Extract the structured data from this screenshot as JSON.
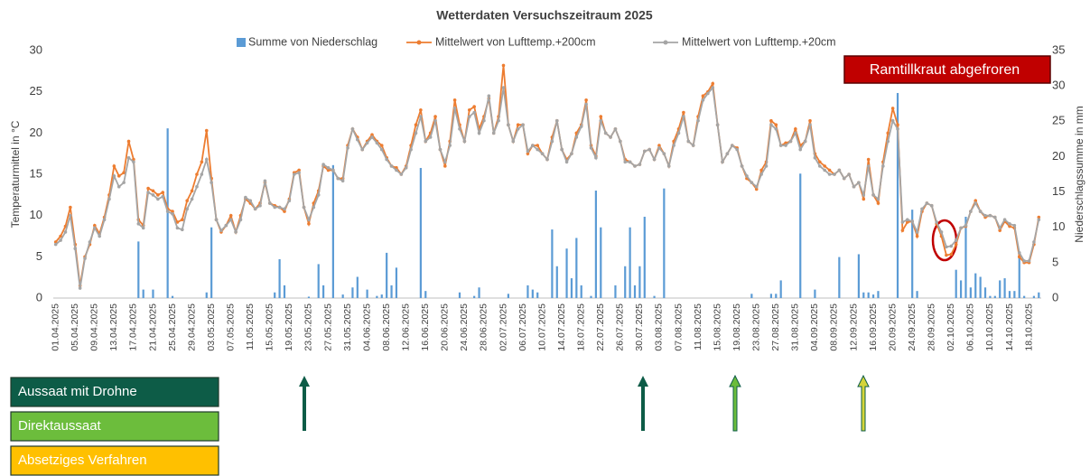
{
  "chart_data": {
    "type": "combo",
    "title": "Wetterdaten Versuchszeitraum 2025",
    "ylabel": "Temperaturmittel in °C",
    "y2label": "Niederschlagssumme in mm",
    "legend": "top",
    "grid": false,
    "ylim": [
      0,
      30
    ],
    "yticks": [
      0,
      5,
      10,
      15,
      20,
      25,
      30
    ],
    "y2lim": [
      0,
      35
    ],
    "y2ticks": [
      0,
      5,
      10,
      15,
      20,
      25,
      30,
      35
    ],
    "categories": [
      "01.04.2025",
      null,
      null,
      null,
      "05.04.2025",
      null,
      null,
      null,
      "09.04.2025",
      null,
      null,
      null,
      "13.04.2025",
      null,
      null,
      null,
      "17.04.2025",
      null,
      null,
      null,
      "21.04.2025",
      null,
      null,
      null,
      "25.04.2025",
      null,
      null,
      null,
      "29.04.2025",
      null,
      null,
      null,
      "03.05.2025",
      null,
      null,
      null,
      "07.05.2025",
      null,
      null,
      null,
      "11.05.2025",
      null,
      null,
      null,
      "15.05.2025",
      null,
      null,
      null,
      "19.05.2025",
      null,
      null,
      null,
      "23.05.2025",
      null,
      null,
      null,
      "27.05.2025",
      null,
      null,
      null,
      "31.05.2025",
      null,
      null,
      null,
      "04.06.2025",
      null,
      null,
      null,
      "08.06.2025",
      null,
      null,
      null,
      "12.06.2025",
      null,
      null,
      null,
      "16.06.2025",
      null,
      null,
      null,
      "20.06.2025",
      null,
      null,
      null,
      "24.06.2025",
      null,
      null,
      null,
      "28.06.2025",
      null,
      null,
      null,
      "02.07.2025",
      null,
      null,
      null,
      "06.07.2025",
      null,
      null,
      null,
      "10.07.2025",
      null,
      null,
      null,
      "14.07.2025",
      null,
      null,
      null,
      "18.07.2025",
      null,
      null,
      null,
      "22.07.2025",
      null,
      null,
      null,
      "26.07.2025",
      null,
      null,
      null,
      "30.07.2025",
      null,
      null,
      null,
      "03.08.2025",
      null,
      null,
      null,
      "07.08.2025",
      null,
      null,
      null,
      "11.08.2025",
      null,
      null,
      null,
      "15.08.2025",
      null,
      null,
      null,
      "19.08.2025",
      null,
      null,
      null,
      "23.08.2025",
      null,
      null,
      null,
      "27.08.2025",
      null,
      null,
      null,
      "31.08.2025",
      null,
      null,
      null,
      "04.09.2025",
      null,
      null,
      null,
      "08.09.2025",
      null,
      null,
      null,
      "12.09.2025",
      null,
      null,
      null,
      "16.09.2025",
      null,
      null,
      null,
      "20.09.2025",
      null,
      null,
      null,
      "24.09.2025",
      null,
      null,
      null,
      "28.09.2025",
      null,
      null,
      null,
      "02.10.2025",
      null,
      null,
      null,
      "06.10.2025",
      null,
      null,
      null,
      "10.10.2025",
      null,
      null,
      null,
      "14.10.2025",
      null,
      null,
      null,
      "18.10.2025",
      null,
      null
    ],
    "series": [
      {
        "name": "Summe von Niederschlag",
        "type": "bar",
        "axis": "y2",
        "color": "#5b9bd5",
        "values": [
          0,
          0,
          0,
          0,
          0,
          0,
          0,
          0,
          0,
          0,
          0,
          0,
          0,
          0,
          0,
          0,
          0,
          8,
          1.2,
          0,
          1.2,
          0,
          0,
          24,
          0.3,
          0,
          0,
          0,
          0,
          0,
          0,
          0.8,
          10,
          0,
          0,
          0,
          0,
          0,
          0,
          0,
          0,
          0,
          0,
          0,
          0,
          0.8,
          5.5,
          1.8,
          0,
          0,
          0,
          0,
          0.2,
          0,
          4.8,
          1.8,
          0,
          18.8,
          0,
          0.5,
          0,
          1.5,
          3,
          0,
          1.2,
          0,
          0.3,
          0.5,
          6.4,
          1.8,
          4.3,
          0,
          0,
          0,
          0,
          18.4,
          1,
          0,
          0,
          0,
          0,
          0,
          0,
          0.8,
          0,
          0,
          0.3,
          1.5,
          0,
          0,
          0,
          0,
          0,
          0.6,
          0,
          0,
          0,
          1.8,
          1.2,
          0.8,
          0,
          0,
          9.7,
          4.5,
          0,
          7,
          2.8,
          8.5,
          1.8,
          0,
          0.3,
          15.2,
          10,
          0,
          0,
          1.8,
          0,
          4.5,
          10,
          1.8,
          4.5,
          11.5,
          0,
          0.3,
          0,
          15.5,
          0,
          0,
          0,
          0,
          0,
          0,
          0,
          0,
          0,
          0,
          0,
          0,
          0,
          0,
          0,
          0,
          0,
          0.6,
          0,
          0,
          0,
          0.6,
          0.6,
          2.5,
          0,
          0,
          0,
          17.6,
          0,
          0,
          1.2,
          0,
          0,
          0,
          0,
          5.8,
          0,
          0,
          0,
          6.2,
          0.8,
          0.8,
          0.5,
          1,
          0,
          0,
          0,
          29,
          0,
          0,
          12.5,
          1,
          0,
          0,
          0,
          0,
          0,
          0,
          0,
          4,
          2.5,
          11.5,
          1.5,
          3.5,
          3,
          1.5,
          0.3,
          0.3,
          2.5,
          2.8,
          1,
          1,
          5.8,
          0.3,
          0,
          0.3,
          0.8
        ]
      },
      {
        "name": "Mittelwert von Lufttemp.+200cm",
        "type": "line",
        "color": "#ed7d31",
        "values": [
          6.8,
          7.5,
          8.7,
          11,
          6.5,
          1.5,
          5,
          6.5,
          8.8,
          7.8,
          9.8,
          12.5,
          16,
          14.8,
          15.2,
          19,
          16.8,
          9.5,
          8.8,
          13.3,
          13,
          12.5,
          12.8,
          10.8,
          10.5,
          9.2,
          9.5,
          11.8,
          13,
          15,
          16.5,
          20.3,
          14.5,
          9.5,
          8,
          8.8,
          10,
          8,
          10,
          12,
          11.5,
          10.8,
          11.5,
          14,
          11.5,
          11.2,
          11,
          10.5,
          12,
          15.2,
          15.5,
          11,
          9,
          11.5,
          13,
          16,
          15.5,
          15.5,
          14.5,
          14.5,
          18.5,
          20.5,
          19.5,
          18,
          19,
          19.8,
          19,
          18.5,
          17,
          16,
          15.8,
          15,
          16,
          18.5,
          21,
          22.8,
          19,
          20,
          22,
          18,
          16,
          19,
          24,
          21,
          19,
          22.8,
          23.2,
          20.5,
          22,
          24.2,
          20,
          22,
          28.2,
          21,
          19,
          21,
          21,
          17.5,
          18.5,
          18.5,
          17.5,
          16.8,
          19.5,
          21.5,
          18,
          16.8,
          17.5,
          20,
          21,
          24,
          18.5,
          17.2,
          22,
          20,
          19.5,
          20.5,
          19,
          16.8,
          16.5,
          16,
          16.2,
          17.8,
          18,
          16.8,
          18.5,
          17.5,
          16,
          19,
          20.5,
          22.5,
          19,
          18.5,
          22,
          24.5,
          25,
          26,
          21,
          16.5,
          17.5,
          18.5,
          18.2,
          16,
          14.5,
          14,
          13.2,
          15.5,
          16.5,
          21.5,
          21,
          18.5,
          18.8,
          19,
          20.5,
          18.5,
          19,
          21.5,
          17.5,
          16.5,
          16,
          15.5,
          15,
          15.5,
          14.5,
          15,
          13.5,
          14,
          12,
          16.8,
          12.5,
          11.5,
          16.5,
          20,
          23,
          21,
          8.2,
          9.2,
          9.3,
          7.5,
          10.5,
          11.5,
          11.2,
          9,
          7.5,
          5.2,
          5.3,
          6.5,
          8.5,
          8.7,
          10.5,
          11.8,
          10.5,
          9.8,
          10,
          9.8,
          8.2,
          9.3,
          8.7,
          8.5,
          5,
          4.3,
          4.3,
          6.5,
          9.8
        ]
      },
      {
        "name": "Mittelwert von Lufttemp.+20cm",
        "type": "line",
        "color": "#a5a5a5",
        "values": [
          6.5,
          7,
          8,
          10,
          6,
          1.2,
          4.8,
          6.8,
          8.5,
          7.5,
          9.5,
          12,
          14.8,
          13.5,
          14,
          17,
          16.5,
          9,
          8.5,
          12.8,
          12.5,
          12,
          12.3,
          10.5,
          10.2,
          8.5,
          8.3,
          10.8,
          12,
          13.5,
          15,
          16.8,
          14,
          9.5,
          8.2,
          8.8,
          9.5,
          8,
          9.5,
          12.2,
          11.8,
          10.8,
          11.2,
          14.2,
          11.5,
          11,
          11,
          10.8,
          11.8,
          15,
          15.2,
          11,
          9.5,
          11,
          12.5,
          16.2,
          15.8,
          15.5,
          14.5,
          14.2,
          18.2,
          20.5,
          19.2,
          18,
          18.8,
          19.5,
          18.8,
          18,
          16.8,
          16,
          15.5,
          15,
          15.8,
          18,
          20,
          22,
          19,
          19.5,
          21.5,
          18,
          16.5,
          18.5,
          23,
          20.5,
          19,
          22,
          22.5,
          20,
          21.5,
          24.5,
          20,
          21.5,
          25.5,
          21,
          19,
          20.5,
          21,
          17.8,
          18.5,
          18,
          17.5,
          16.8,
          19,
          21.5,
          18,
          16.5,
          17.5,
          19.5,
          20.8,
          23.5,
          18.2,
          17,
          21.5,
          20,
          19.5,
          20.5,
          19,
          16.5,
          16.5,
          16,
          16.2,
          17.8,
          18,
          16.8,
          18.2,
          17.5,
          16,
          18.5,
          20,
          22,
          19,
          18.5,
          21.5,
          24,
          24.8,
          25.5,
          21,
          16.5,
          17.5,
          18.5,
          18,
          16,
          14.8,
          14,
          13.5,
          15,
          16,
          21,
          20.5,
          18.5,
          18.5,
          19,
          20,
          18,
          19,
          21,
          17,
          16,
          15.5,
          15,
          15,
          15.5,
          14.5,
          15,
          13.5,
          14,
          12.5,
          16,
          12.5,
          12,
          16,
          19,
          21.5,
          20.5,
          9.2,
          9.5,
          9.3,
          8,
          10.8,
          11.5,
          11.2,
          9.2,
          8,
          6.2,
          6.3,
          7,
          8.5,
          8.8,
          10.5,
          11.5,
          10.5,
          10,
          10,
          9.8,
          8.5,
          9.5,
          9,
          8.8,
          5.5,
          4.5,
          4.5,
          6.8,
          9.5
        ]
      }
    ],
    "annotations": [
      "Ramtillkraut abgefroren"
    ],
    "sowing_methods": [
      {
        "label": "Aussaat mit Drohne",
        "color": "#0d5c47"
      },
      {
        "label": "Direktaussaat",
        "color": "#6cbd3c"
      },
      {
        "label": "Absetziges Verfahren",
        "color": "#ffc000"
      }
    ]
  }
}
